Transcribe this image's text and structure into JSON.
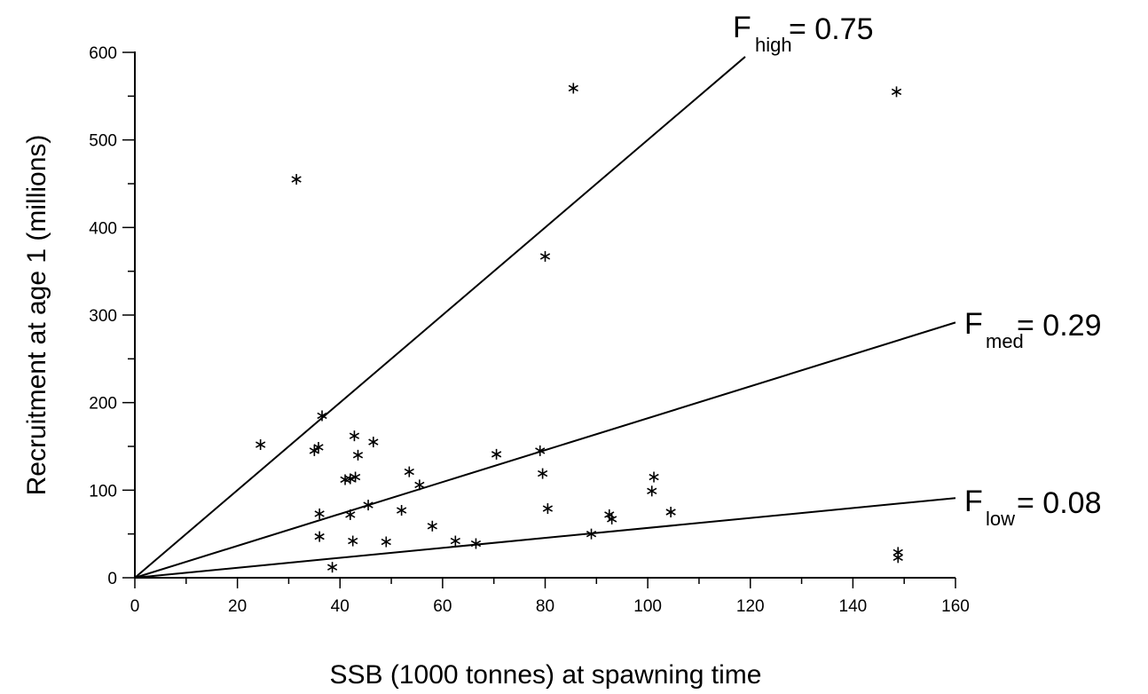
{
  "chart_data": {
    "type": "scatter",
    "xlabel": "SSB (1000 tonnes) at spawning time",
    "ylabel": "Recruitment at age 1 (millions)",
    "xlim": [
      0,
      160
    ],
    "ylim": [
      0,
      600
    ],
    "x_ticks": [
      "0",
      "20",
      "40",
      "60",
      "80",
      "100",
      "120",
      "140",
      "160"
    ],
    "y_ticks": [
      "0",
      "100",
      "200",
      "300",
      "400",
      "500",
      "600"
    ],
    "grid": false,
    "marker": "*",
    "points": [
      {
        "x": 24.5,
        "y": 152
      },
      {
        "x": 31.5,
        "y": 455
      },
      {
        "x": 35,
        "y": 145
      },
      {
        "x": 35.8,
        "y": 149
      },
      {
        "x": 36,
        "y": 73
      },
      {
        "x": 36,
        "y": 47
      },
      {
        "x": 36.5,
        "y": 185
      },
      {
        "x": 38.5,
        "y": 12
      },
      {
        "x": 41,
        "y": 112
      },
      {
        "x": 42,
        "y": 113
      },
      {
        "x": 42,
        "y": 72
      },
      {
        "x": 42.5,
        "y": 42
      },
      {
        "x": 42.8,
        "y": 162
      },
      {
        "x": 43,
        "y": 115
      },
      {
        "x": 43.5,
        "y": 140
      },
      {
        "x": 45.5,
        "y": 83
      },
      {
        "x": 46.5,
        "y": 155
      },
      {
        "x": 49,
        "y": 41
      },
      {
        "x": 52,
        "y": 77
      },
      {
        "x": 53.5,
        "y": 121
      },
      {
        "x": 55.5,
        "y": 106
      },
      {
        "x": 58,
        "y": 59
      },
      {
        "x": 62.5,
        "y": 42
      },
      {
        "x": 66.5,
        "y": 39
      },
      {
        "x": 70.5,
        "y": 141
      },
      {
        "x": 79,
        "y": 145
      },
      {
        "x": 79.5,
        "y": 119
      },
      {
        "x": 80,
        "y": 367
      },
      {
        "x": 80.5,
        "y": 79
      },
      {
        "x": 85.5,
        "y": 559
      },
      {
        "x": 89,
        "y": 50
      },
      {
        "x": 92.5,
        "y": 72
      },
      {
        "x": 93,
        "y": 67
      },
      {
        "x": 100.8,
        "y": 99
      },
      {
        "x": 101.2,
        "y": 115
      },
      {
        "x": 104.5,
        "y": 75
      },
      {
        "x": 148.5,
        "y": 555
      },
      {
        "x": 148.8,
        "y": 29
      },
      {
        "x": 148.8,
        "y": 23
      }
    ],
    "reference_lines": [
      {
        "symbol": "F",
        "subscript": "high",
        "label_value": "=  0.75",
        "slope": 5.0,
        "x_end": 119
      },
      {
        "symbol": "F",
        "subscript": "med",
        "label_value": "=  0.29",
        "slope": 1.8219,
        "x_end": 160
      },
      {
        "symbol": "F",
        "subscript": "low",
        "label_value": "=  0.08",
        "slope": 0.5688,
        "x_end": 160
      }
    ]
  }
}
